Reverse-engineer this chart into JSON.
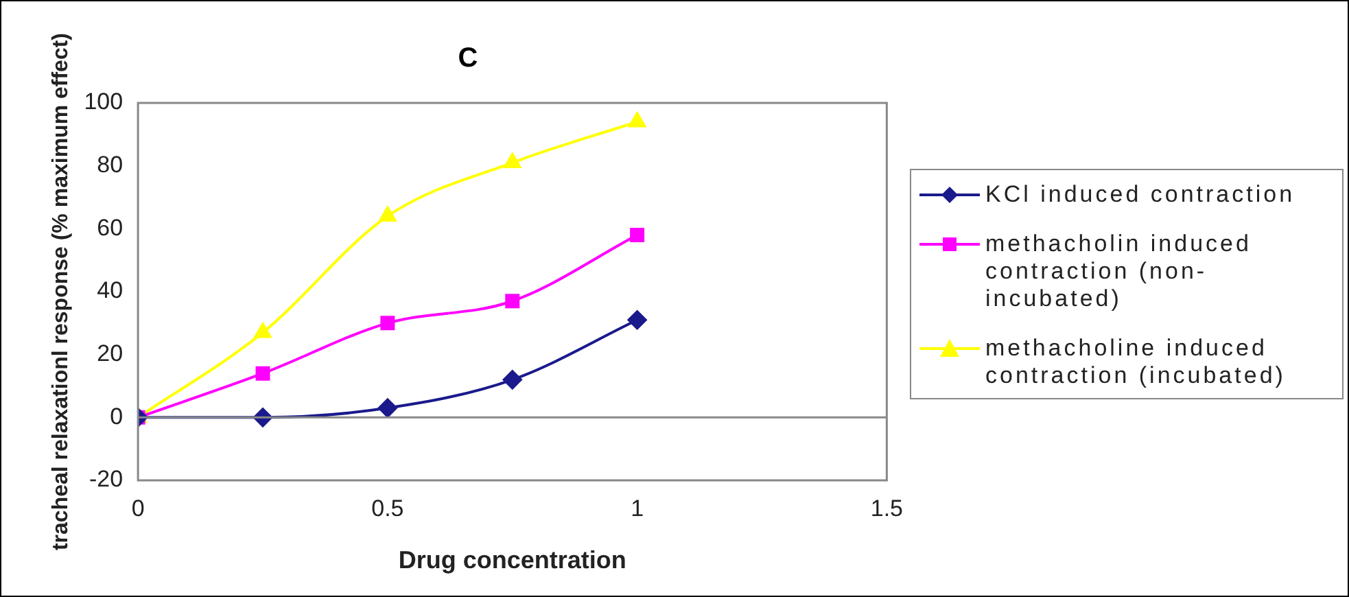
{
  "chart_data": {
    "type": "line",
    "title": "C",
    "xlabel": "Drug concentration",
    "ylabel": "tracheal relaxationl response (% maximum effect)",
    "x": [
      0,
      0.25,
      0.5,
      0.75,
      1
    ],
    "xlim": [
      0,
      1.5
    ],
    "xticks": [
      0,
      0.5,
      1,
      1.5
    ],
    "ylim": [
      -20,
      100
    ],
    "yticks": [
      -20,
      0,
      20,
      40,
      60,
      80,
      100
    ],
    "grid": false,
    "legend": "right",
    "ref_lines": [
      {
        "axis": "y",
        "value": 0,
        "color": "#888888"
      }
    ],
    "series": [
      {
        "name": "KCl induced contraction",
        "color": "#1a1a8c",
        "marker": "diamond",
        "values": [
          0,
          0,
          3,
          12,
          31
        ]
      },
      {
        "name": "methacholin induced contraction (non-incubated)",
        "color": "#ff00ff",
        "marker": "square",
        "values": [
          0,
          14,
          30,
          37,
          58
        ]
      },
      {
        "name": "methacholine induced contraction (incubated)",
        "color": "#ffff00",
        "marker": "triangle",
        "values": [
          0,
          27,
          64,
          81,
          94
        ]
      }
    ]
  }
}
